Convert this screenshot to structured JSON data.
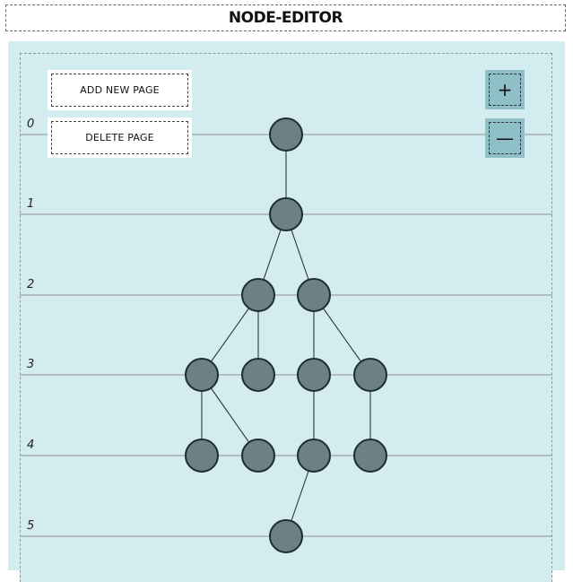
{
  "app": {
    "title": "NODE-EDITOR"
  },
  "toolbar": {
    "add_page_label": "ADD NEW PAGE",
    "delete_page_label": "DELETE PAGE",
    "zoom_in_label": "+",
    "zoom_out_label": "—"
  },
  "levels": [
    "0",
    "1",
    "2",
    "3",
    "4",
    "5"
  ],
  "colors": {
    "canvas_bg": "#d3ecf0",
    "node_fill": "#6b8186",
    "node_stroke": "#1f2d30",
    "edge": "#333333",
    "level_line": "#9aa3a5",
    "zoom_button_bg": "#8fc0c8"
  },
  "graph": {
    "nodes": [
      {
        "id": "n0",
        "level": 0
      },
      {
        "id": "n1",
        "level": 1
      },
      {
        "id": "n2a",
        "level": 2
      },
      {
        "id": "n2b",
        "level": 2
      },
      {
        "id": "n3a",
        "level": 3
      },
      {
        "id": "n3b",
        "level": 3
      },
      {
        "id": "n3c",
        "level": 3
      },
      {
        "id": "n3d",
        "level": 3
      },
      {
        "id": "n4a",
        "level": 4
      },
      {
        "id": "n4b",
        "level": 4
      },
      {
        "id": "n4c",
        "level": 4
      },
      {
        "id": "n4d",
        "level": 4
      },
      {
        "id": "n5",
        "level": 5
      }
    ],
    "edges": [
      [
        "n0",
        "n1"
      ],
      [
        "n1",
        "n2a"
      ],
      [
        "n1",
        "n2b"
      ],
      [
        "n2a",
        "n3a"
      ],
      [
        "n2a",
        "n3b"
      ],
      [
        "n2b",
        "n3c"
      ],
      [
        "n2b",
        "n3d"
      ],
      [
        "n3a",
        "n4a"
      ],
      [
        "n3a",
        "n4b"
      ],
      [
        "n3c",
        "n4c"
      ],
      [
        "n3d",
        "n4d"
      ],
      [
        "n4c",
        "n5"
      ]
    ]
  }
}
